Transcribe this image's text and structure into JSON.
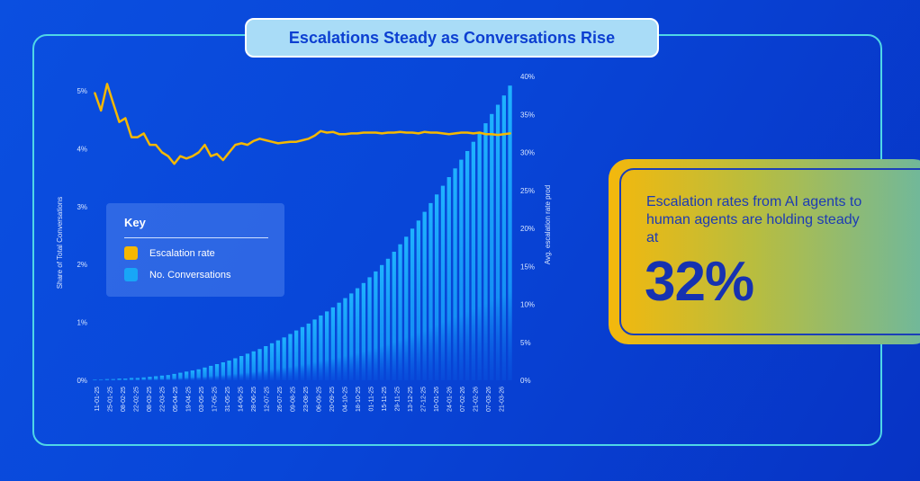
{
  "title": "Escalations Steady as Conversations Rise",
  "legend": {
    "title": "Key",
    "items": [
      {
        "label": "Escalation rate",
        "color": "#f5b800"
      },
      {
        "label": "No. Conversations",
        "color": "#18a6f7"
      }
    ]
  },
  "callout": {
    "text": "Escalation rates from AI agents to human agents are holding steady at",
    "value": "32%"
  },
  "chart_data": {
    "type": "bar",
    "left_axis": {
      "label": "Share of Total Conversations",
      "ticks": [
        "0%",
        "1%",
        "2%",
        "3%",
        "4%",
        "5%"
      ],
      "range": [
        0,
        5
      ]
    },
    "right_axis": {
      "label": "Avg. escalation rate prod",
      "ticks": [
        "0%",
        "5%",
        "10%",
        "15%",
        "20%",
        "25%",
        "30%",
        "35%",
        "40%"
      ],
      "range": [
        0,
        40
      ]
    },
    "x_ticks": [
      "11-01-25",
      "25-01-25",
      "08-02-25",
      "22-02-25",
      "08-03-25",
      "22-03-25",
      "05-04-25",
      "19-04-25",
      "03-05-25",
      "17-05-25",
      "31-05-25",
      "14-06-25",
      "28-06-25",
      "12-07-25",
      "26-07-25",
      "09-08-25",
      "23-08-25",
      "06-09-25",
      "20-09-25",
      "04-10-25",
      "18-10-25",
      "01-11-25",
      "15-11-25",
      "29-11-25",
      "13-12-25",
      "27-12-25",
      "10-01-26",
      "24-01-26",
      "07-02-26",
      "21-02-26",
      "07-03-26",
      "21-03-26"
    ],
    "series": [
      {
        "name": "No. Conversations",
        "type": "bar",
        "axis": "left",
        "color": "#18a6f7",
        "values": [
          0.01,
          0.01,
          0.02,
          0.02,
          0.03,
          0.03,
          0.04,
          0.04,
          0.05,
          0.06,
          0.07,
          0.08,
          0.09,
          0.11,
          0.13,
          0.15,
          0.17,
          0.19,
          0.22,
          0.25,
          0.28,
          0.31,
          0.34,
          0.38,
          0.42,
          0.46,
          0.5,
          0.54,
          0.59,
          0.64,
          0.69,
          0.74,
          0.8,
          0.86,
          0.92,
          0.98,
          1.05,
          1.12,
          1.19,
          1.26,
          1.34,
          1.42,
          1.5,
          1.59,
          1.68,
          1.78,
          1.88,
          1.99,
          2.1,
          2.22,
          2.35,
          2.48,
          2.62,
          2.76,
          2.91,
          3.06,
          3.21,
          3.36,
          3.51,
          3.66,
          3.81,
          3.96,
          4.12,
          4.28,
          4.44,
          4.6,
          4.76,
          4.92,
          5.09
        ]
      },
      {
        "name": "Escalation rate",
        "type": "line",
        "axis": "right",
        "color": "#f5b800",
        "values": [
          37.8,
          35.5,
          39.0,
          36.5,
          34.0,
          34.5,
          32.0,
          32.0,
          32.5,
          31.0,
          31.0,
          30.0,
          29.5,
          28.5,
          29.5,
          29.2,
          29.5,
          30.0,
          31.0,
          29.5,
          29.8,
          29.0,
          30.0,
          31.0,
          31.2,
          31.0,
          31.5,
          31.8,
          31.6,
          31.4,
          31.2,
          31.3,
          31.4,
          31.4,
          31.6,
          31.8,
          32.2,
          32.8,
          32.6,
          32.7,
          32.4,
          32.4,
          32.5,
          32.5,
          32.6,
          32.6,
          32.6,
          32.5,
          32.6,
          32.6,
          32.7,
          32.6,
          32.6,
          32.5,
          32.7,
          32.6,
          32.6,
          32.5,
          32.4,
          32.5,
          32.6,
          32.6,
          32.5,
          32.6,
          32.4,
          32.4,
          32.3,
          32.4,
          32.5
        ]
      }
    ]
  }
}
